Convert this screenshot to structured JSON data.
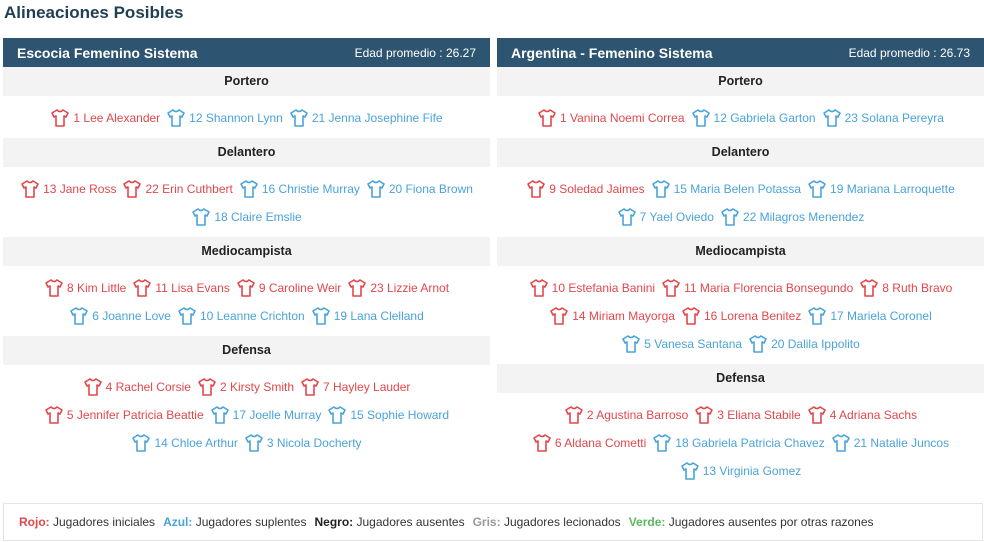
{
  "page_title": "Alineaciones Posibles",
  "colors": {
    "header_bg": "#2d5470",
    "red": "#e2474b",
    "blue": "#4aa3d9",
    "gray": "#999999",
    "green": "#5cb85c",
    "black": "#222222"
  },
  "teams": [
    {
      "name": "Escocia Femenino Sistema",
      "avg": "Edad promedio : 26.27",
      "positions": [
        {
          "label": "Portero",
          "players": [
            {
              "text": "1 Lee Alexander",
              "status": "red"
            },
            {
              "text": "12 Shannon Lynn",
              "status": "blue"
            },
            {
              "text": "21 Jenna Josephine Fife",
              "status": "blue"
            }
          ]
        },
        {
          "label": "Delantero",
          "players": [
            {
              "text": "13 Jane Ross",
              "status": "red"
            },
            {
              "text": "22 Erin Cuthbert",
              "status": "red"
            },
            {
              "text": "16 Christie Murray",
              "status": "blue"
            },
            {
              "text": "20 Fiona Brown",
              "status": "blue"
            },
            {
              "text": "18 Claire Emslie",
              "status": "blue"
            }
          ]
        },
        {
          "label": "Mediocampista",
          "players": [
            {
              "text": "8 Kim Little",
              "status": "red"
            },
            {
              "text": "11 Lisa Evans",
              "status": "red"
            },
            {
              "text": "9 Caroline Weir",
              "status": "red"
            },
            {
              "text": "23 Lizzie Arnot",
              "status": "red"
            },
            {
              "text": "6 Joanne Love",
              "status": "blue"
            },
            {
              "text": "10 Leanne Crichton",
              "status": "blue"
            },
            {
              "text": "19 Lana Clelland",
              "status": "blue"
            }
          ]
        },
        {
          "label": "Defensa",
          "players": [
            {
              "text": "4 Rachel Corsie",
              "status": "red"
            },
            {
              "text": "2 Kirsty Smith",
              "status": "red"
            },
            {
              "text": "7 Hayley Lauder",
              "status": "red"
            },
            {
              "text": "5 Jennifer Patricia Beattie",
              "status": "red"
            },
            {
              "text": "17 Joelle Murray",
              "status": "blue"
            },
            {
              "text": "15 Sophie Howard",
              "status": "blue"
            },
            {
              "text": "14 Chloe Arthur",
              "status": "blue"
            },
            {
              "text": "3 Nicola Docherty",
              "status": "blue"
            }
          ]
        }
      ]
    },
    {
      "name": "Argentina - Femenino Sistema",
      "avg": "Edad promedio : 26.73",
      "positions": [
        {
          "label": "Portero",
          "players": [
            {
              "text": "1 Vanina Noemi Correa",
              "status": "red"
            },
            {
              "text": "12 Gabriela Garton",
              "status": "blue"
            },
            {
              "text": "23 Solana Pereyra",
              "status": "blue"
            }
          ]
        },
        {
          "label": "Delantero",
          "players": [
            {
              "text": "9 Soledad Jaimes",
              "status": "red"
            },
            {
              "text": "15 Maria Belen Potassa",
              "status": "blue"
            },
            {
              "text": "19 Mariana Larroquette",
              "status": "blue"
            },
            {
              "text": "7 Yael Oviedo",
              "status": "blue"
            },
            {
              "text": "22 Milagros Menendez",
              "status": "blue"
            }
          ]
        },
        {
          "label": "Mediocampista",
          "players": [
            {
              "text": "10 Estefania Banini",
              "status": "red"
            },
            {
              "text": "11 Maria Florencia Bonsegundo",
              "status": "red"
            },
            {
              "text": "8 Ruth Bravo",
              "status": "red"
            },
            {
              "text": "14 Miriam Mayorga",
              "status": "red"
            },
            {
              "text": "16 Lorena Benitez",
              "status": "red"
            },
            {
              "text": "17 Mariela Coronel",
              "status": "blue"
            },
            {
              "text": "5 Vanesa Santana",
              "status": "blue"
            },
            {
              "text": "20 Dalila Ippolito",
              "status": "blue"
            }
          ]
        },
        {
          "label": "Defensa",
          "players": [
            {
              "text": "2 Agustina Barroso",
              "status": "red"
            },
            {
              "text": "3 Eliana Stabile",
              "status": "red"
            },
            {
              "text": "4 Adriana Sachs",
              "status": "red"
            },
            {
              "text": "6 Aldana Cometti",
              "status": "red"
            },
            {
              "text": "18 Gabriela Patricia Chavez",
              "status": "blue"
            },
            {
              "text": "21 Natalie Juncos",
              "status": "blue"
            },
            {
              "text": "13 Virginia Gomez",
              "status": "blue"
            }
          ]
        }
      ]
    }
  ],
  "legend": [
    {
      "key": "Rojo:",
      "desc": "Jugadores iniciales",
      "color": "#e2474b"
    },
    {
      "key": "Azul:",
      "desc": "Jugadores suplentes",
      "color": "#4aa3d9"
    },
    {
      "key": "Negro:",
      "desc": "Jugadores ausentes",
      "color": "#222222"
    },
    {
      "key": "Gris:",
      "desc": "Jugadores lecionados",
      "color": "#999999"
    },
    {
      "key": "Verde:",
      "desc": "Jugadores ausentes por otras razones",
      "color": "#5cb85c"
    }
  ]
}
